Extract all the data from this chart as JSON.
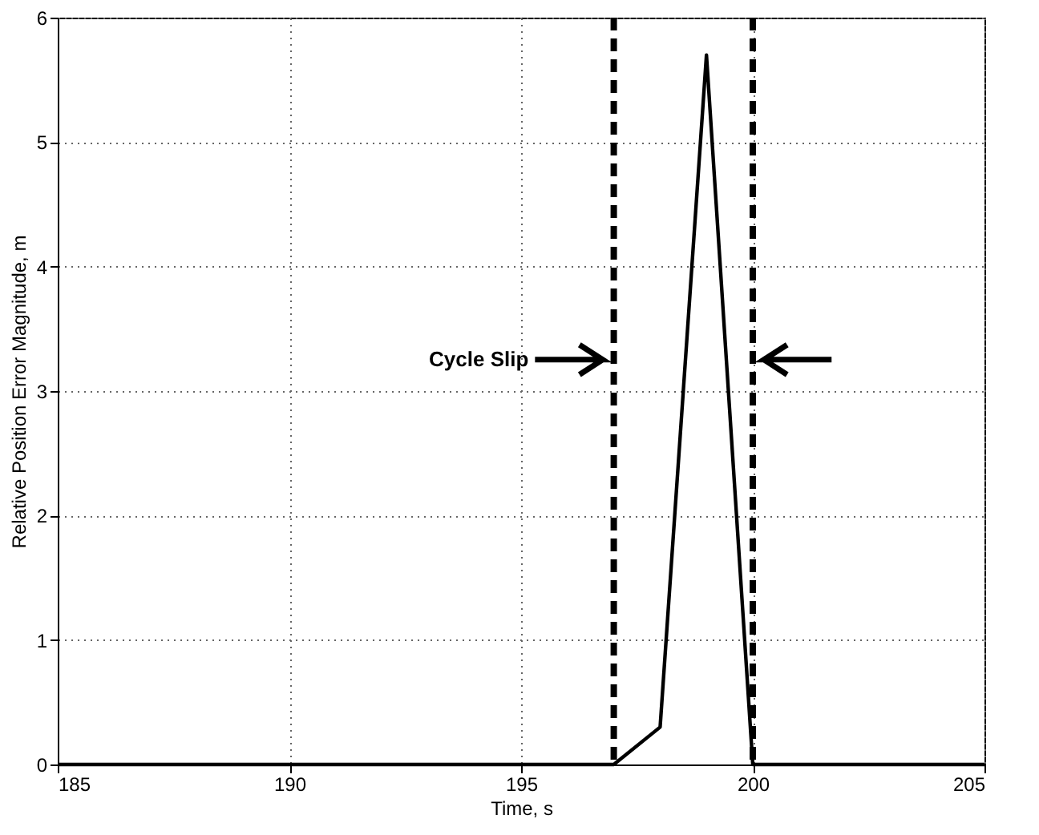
{
  "chart_data": {
    "type": "line",
    "xlabel": "Time, s",
    "ylabel": "Relative Position Error Magnitude, m",
    "x": [
      185,
      197,
      198,
      199,
      200,
      205
    ],
    "series": [
      {
        "color": "#000000",
        "values": [
          0,
          0,
          0.3,
          5.7,
          0,
          0
        ]
      }
    ],
    "xlim": [
      185,
      205
    ],
    "xticks": [
      185,
      190,
      195,
      200,
      205
    ],
    "ylim": [
      0,
      6
    ],
    "yticks": [
      0,
      1,
      2,
      3,
      4,
      5,
      6
    ],
    "grid": true,
    "marker": "none",
    "line_style": "solid",
    "ref_lines": [
      {
        "axis": "x",
        "value": 197,
        "color": "#000000",
        "line_style": "dashed"
      },
      {
        "axis": "x",
        "value": 200,
        "color": "#000000",
        "line_style": "dashed"
      }
    ],
    "annotations": [
      "Cycle Slip"
    ]
  }
}
